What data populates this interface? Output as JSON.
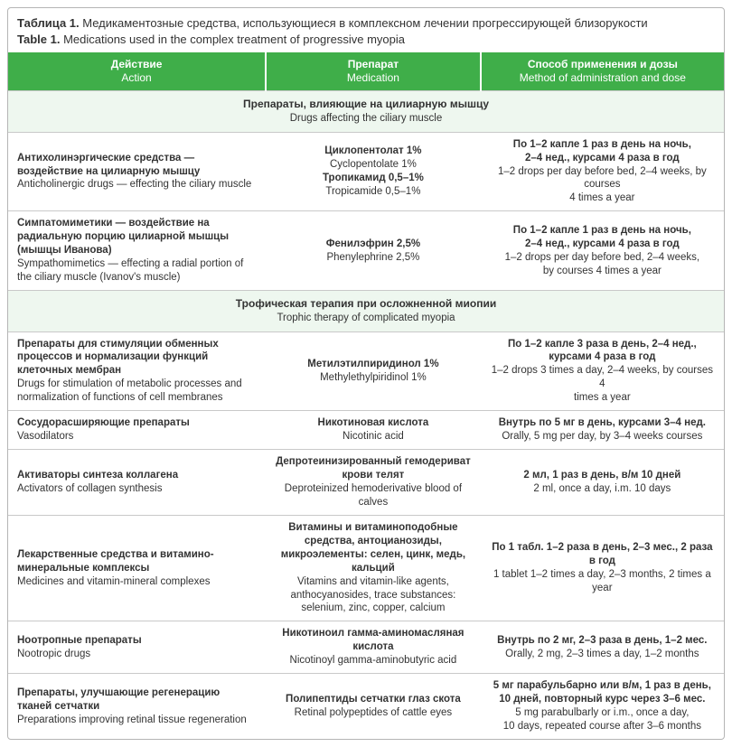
{
  "colors": {
    "header_bg": "#3fae49",
    "section_bg": "#eef7ef",
    "border": "#c9c9c9"
  },
  "caption": {
    "ru_bold": "Таблица 1.",
    "ru_rest": " Медикаментозные средства, использующиеся в комплексном лечении прогрессирующей близорукости",
    "en_bold": "Table 1.",
    "en_rest": " Medications used in the complex treatment of progressive myopia"
  },
  "columns": {
    "c1_ru": "Действие",
    "c1_en": "Action",
    "c2_ru": "Препарат",
    "c2_en": "Medication",
    "c3_ru": "Способ применения и дозы",
    "c3_en": "Method of administration and dose"
  },
  "section1": {
    "ru": "Препараты, влияющие на цилиарную мышцу",
    "en": "Drugs affecting the ciliary muscle"
  },
  "r1": {
    "action_ru": "Антихолинэргические средства — воздействие на цилиарную мышцу",
    "action_en": "Anticholinergic drugs — effecting the ciliary muscle",
    "med1_ru": "Циклопентолат 1%",
    "med1_en": "Cyclopentolate 1%",
    "med2_ru": "Тропикамид 0,5–1%",
    "med2_en": "Tropicamide 0,5–1%",
    "dose_ru1": "По 1–2 капле 1 раз в день на ночь,",
    "dose_ru2": "2–4 нед., курсами 4 раза в год",
    "dose_en1": "1–2 drops per day before bed, 2–4 weeks, by courses",
    "dose_en2": "4 times a year"
  },
  "r2": {
    "action_ru": "Симпатомиметики — воздействие на радиальную порцию цилиарной мышцы (мышцы Иванова)",
    "action_en": "Sympathomimetics — effecting a radial portion of the ciliary muscle (Ivanov's muscle)",
    "med_ru": "Фенилэфрин 2,5%",
    "med_en": "Phenylephrine 2,5%",
    "dose_ru1": "По 1–2 капле 1 раз в день на ночь,",
    "dose_ru2": "2–4 нед., курсами 4 раза в год",
    "dose_en1": "1–2 drops per day before bed, 2–4 weeks,",
    "dose_en2": "by courses 4 times a year"
  },
  "section2": {
    "ru": "Трофическая терапия при осложненной миопии",
    "en": "Trophic therapy of complicated myopia"
  },
  "r3": {
    "action_ru": "Препараты для стимуляции обменных процессов и нормализации функций клеточных мембран",
    "action_en": "Drugs for stimulation of metabolic processes and normalization of functions of cell membranes",
    "med_ru": "Метилэтилпиридинол 1%",
    "med_en": "Methylethylpiridinol 1%",
    "dose_ru1": "По 1–2 капле 3 раза в день, 2–4 нед.,",
    "dose_ru2": "курсами 4 раза в год",
    "dose_en1": "1–2 drops 3 times a day, 2–4 weeks, by courses 4",
    "dose_en2": "times a year"
  },
  "r4": {
    "action_ru": "Сосудорасширяющие препараты",
    "action_en": "Vasodilators",
    "med_ru": "Никотиновая кислота",
    "med_en": "Nicotinic acid",
    "dose_ru": "Внутрь по 5 мг в день, курсами 3–4 нед.",
    "dose_en": "Orally, 5 mg per day, by 3–4 weeks courses"
  },
  "r5": {
    "action_ru": "Активаторы синтеза коллагена",
    "action_en": "Activators of collagen synthesis",
    "med_ru": "Депротеинизированный гемодериват крови телят",
    "med_en": "Deproteinized hemoderivative blood of calves",
    "dose_ru": "2 мл, 1 раз в день, в/м 10 дней",
    "dose_en": "2 ml, once a day, i.m. 10 days"
  },
  "r6": {
    "action_ru": "Лекарственные средства и витамино-минеральные комплексы",
    "action_en": "Medicines and vitamin-mineral complexes",
    "med_ru1": "Витамины и витаминоподобные средства, антоцианозиды, микроэлементы: селен, цинк, медь, кальций",
    "med_en1": "Vitamins and vitamin-like agents, anthocyanosides, trace substances: selenium, zinc, copper, calcium",
    "dose_ru": "По 1 табл. 1–2 раза в день, 2–3 мес., 2 раза в год",
    "dose_en": "1 tablet 1–2 times a day, 2–3 months, 2 times a year"
  },
  "r7": {
    "action_ru": "Ноотропные препараты",
    "action_en": "Nootropic drugs",
    "med_ru": "Никотиноил гамма-аминомасляная кислота",
    "med_en": "Nicotinoyl gamma-aminobutyric acid",
    "dose_ru": "Внутрь по 2 мг, 2–3 раза в день, 1–2 мес.",
    "dose_en": "Orally, 2 mg, 2–3 times a day, 1–2 months"
  },
  "r8": {
    "action_ru": "Препараты, улучшающие регенерацию тканей сетчатки",
    "action_en": "Preparations improving retinal tissue regeneration",
    "med_ru": "Полипептиды сетчатки глаз скота",
    "med_en": "Retinal polypeptides of cattle eyes",
    "dose_ru1": "5 мг парабульбарно или в/м, 1 раз в день,",
    "dose_ru2": "10 дней, повторный курс через 3–6 мес.",
    "dose_en1": "5 mg parabulbarly or i.m., once a day,",
    "dose_en2": "10 days, repeated course after 3–6 months"
  }
}
